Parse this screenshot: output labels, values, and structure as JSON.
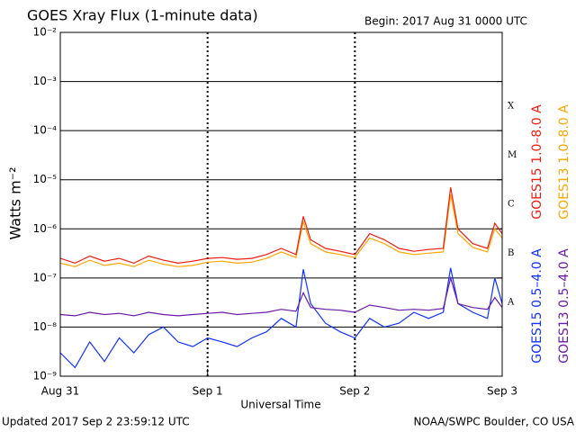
{
  "chart_data": {
    "type": "line",
    "title": "GOES Xray Flux (1-minute data)",
    "subtitle": "Begin:  2017 Aug 31 0000 UTC",
    "y_label": "Watts m⁻²",
    "x_label": "Universal Time",
    "footer_left": "Updated 2017 Sep  2 23:59:12 UTC",
    "footer_right": "NOAA/SWPC Boulder, CO USA",
    "log_y": true,
    "grid": true,
    "xlim": [
      0,
      3
    ],
    "xticks": [
      {
        "value": 0,
        "label": "Aug 31"
      },
      {
        "value": 1,
        "label": "Sep 1"
      },
      {
        "value": 2,
        "label": "Sep 2"
      },
      {
        "value": 3,
        "label": "Sep 3"
      }
    ],
    "ylim": [
      1e-09,
      0.01
    ],
    "yticks": [
      {
        "value": 1e-09,
        "label": "10⁻⁹"
      },
      {
        "value": 1e-08,
        "label": "10⁻⁸"
      },
      {
        "value": 1e-07,
        "label": "10⁻⁷"
      },
      {
        "value": 1e-06,
        "label": "10⁻⁶"
      },
      {
        "value": 1e-05,
        "label": "10⁻⁵"
      },
      {
        "value": 0.0001,
        "label": "10⁻⁴"
      },
      {
        "value": 0.001,
        "label": "10⁻³"
      },
      {
        "value": 0.01,
        "label": "10⁻²"
      }
    ],
    "flare_classes": [
      {
        "label": "A",
        "value": 1e-08
      },
      {
        "label": "B",
        "value": 1e-07
      },
      {
        "label": "C",
        "value": 1e-06
      },
      {
        "label": "M",
        "value": 1e-05
      },
      {
        "label": "X",
        "value": 0.0001
      }
    ],
    "x": [
      0,
      0.1,
      0.2,
      0.3,
      0.4,
      0.5,
      0.6,
      0.7,
      0.8,
      0.9,
      1.0,
      1.1,
      1.2,
      1.3,
      1.4,
      1.5,
      1.6,
      1.65,
      1.7,
      1.8,
      1.9,
      2.0,
      2.1,
      2.2,
      2.3,
      2.4,
      2.5,
      2.6,
      2.65,
      2.7,
      2.8,
      2.9,
      2.95,
      3.0
    ],
    "series": [
      {
        "name": "GOES15 1.0–8.0 A",
        "color": "#ee1c10",
        "values": [
          2.5e-07,
          2e-07,
          2.8e-07,
          2.2e-07,
          2.5e-07,
          2e-07,
          2.8e-07,
          2.3e-07,
          2e-07,
          2.2e-07,
          2.5e-07,
          2.6e-07,
          2.4e-07,
          2.5e-07,
          3e-07,
          4e-07,
          3e-07,
          1.8e-06,
          6e-07,
          4e-07,
          3.5e-07,
          3e-07,
          8e-07,
          6e-07,
          4e-07,
          3.5e-07,
          3.8e-07,
          4e-07,
          7e-06,
          1e-06,
          5e-07,
          4e-07,
          1.3e-06,
          8e-07
        ]
      },
      {
        "name": "GOES13 1.0–8.0 A",
        "color": "#ffa500",
        "values": [
          2e-07,
          1.7e-07,
          2.3e-07,
          1.8e-07,
          2e-07,
          1.7e-07,
          2.3e-07,
          1.9e-07,
          1.7e-07,
          1.8e-07,
          2.1e-07,
          2.2e-07,
          2e-07,
          2.1e-07,
          2.5e-07,
          3.4e-07,
          2.6e-07,
          1.4e-06,
          5e-07,
          3.4e-07,
          3e-07,
          2.6e-07,
          6.5e-07,
          5e-07,
          3.4e-07,
          3e-07,
          3.2e-07,
          3.4e-07,
          5e-06,
          8e-07,
          4.2e-07,
          3.4e-07,
          1e-06,
          6.5e-07
        ]
      },
      {
        "name": "GOES15 0.5–4.0 A",
        "color": "#1030ff",
        "values": [
          3e-09,
          1.5e-09,
          5e-09,
          2e-09,
          6e-09,
          3e-09,
          7e-09,
          1e-08,
          5e-09,
          4e-09,
          6e-09,
          5e-09,
          4e-09,
          6e-09,
          8e-09,
          1.5e-08,
          1e-08,
          1.5e-07,
          3e-08,
          1.2e-08,
          8e-09,
          6e-09,
          1.5e-08,
          1e-08,
          1.2e-08,
          2e-08,
          1.5e-08,
          2e-08,
          1.6e-07,
          3e-08,
          2e-08,
          1.5e-08,
          1e-07,
          3e-08
        ]
      },
      {
        "name": "GOES13 0.5–4.0 A",
        "color": "#6a1aa8",
        "values": [
          1.8e-08,
          1.7e-08,
          2e-08,
          1.8e-08,
          1.9e-08,
          1.7e-08,
          2e-08,
          1.8e-08,
          1.7e-08,
          1.8e-08,
          1.9e-08,
          2e-08,
          1.8e-08,
          1.9e-08,
          2e-08,
          2.3e-08,
          2.1e-08,
          5e-08,
          2.5e-08,
          2.3e-08,
          2.2e-08,
          2e-08,
          2.8e-08,
          2.5e-08,
          2.2e-08,
          2.3e-08,
          2.2e-08,
          2.4e-08,
          1e-07,
          3e-08,
          2.5e-08,
          2.3e-08,
          4e-08,
          2.5e-08
        ]
      }
    ]
  }
}
